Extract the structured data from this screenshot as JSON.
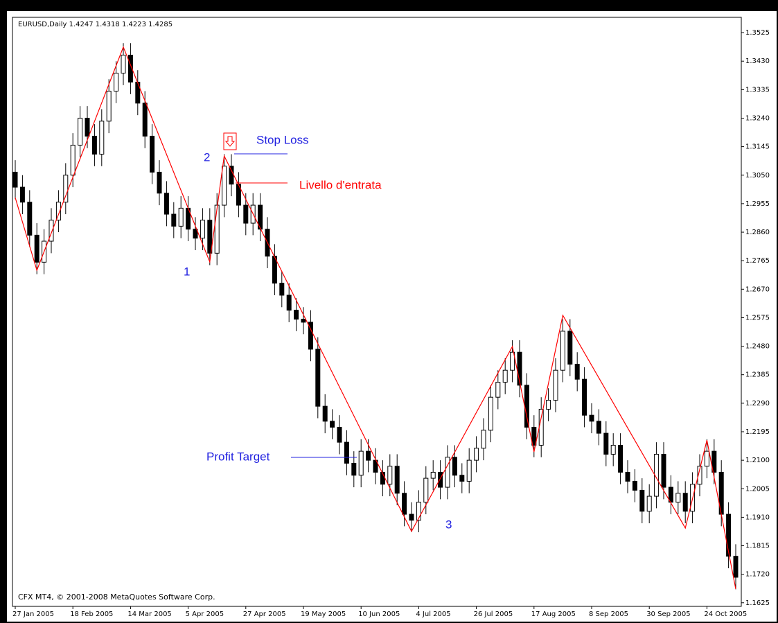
{
  "chart_data": {
    "type": "candlestick",
    "title": "EURUSD,Daily  1.4247 1.4318 1.4223 1.4285",
    "footer": "CFX MT4, © 2001-2008 MetaQuotes Software Corp.",
    "annotations": {
      "stop_loss": "Stop Loss",
      "entry": "Livello d'entrata",
      "profit_target": "Profit Target",
      "point1": "1",
      "point2": "2",
      "point3": "3"
    },
    "colors": {
      "up": "#ffffff",
      "down": "#000000",
      "outline": "#000000",
      "zigzag": "#ff0000",
      "blue_text": "#2020e0",
      "red_text": "#ff0000"
    },
    "categories": [
      "27 Jan 2005",
      null,
      null,
      null,
      null,
      null,
      null,
      null,
      "18 Feb 2005",
      null,
      null,
      null,
      null,
      null,
      null,
      null,
      "14 Mar 2005",
      null,
      null,
      null,
      null,
      null,
      null,
      null,
      "5 Apr 2005",
      null,
      null,
      null,
      null,
      null,
      null,
      null,
      "27 Apr 2005",
      null,
      null,
      null,
      null,
      null,
      null,
      null,
      "19 May 2005",
      null,
      null,
      null,
      null,
      null,
      null,
      null,
      "10 Jun 2005",
      null,
      null,
      null,
      null,
      null,
      null,
      null,
      "4 Jul 2005",
      null,
      null,
      null,
      null,
      null,
      null,
      null,
      "26 Jul 2005",
      null,
      null,
      null,
      null,
      null,
      null,
      null,
      "17 Aug 2005",
      null,
      null,
      null,
      null,
      null,
      null,
      null,
      "8 Sep 2005",
      null,
      null,
      null,
      null,
      null,
      null,
      null,
      "30 Sep 2005",
      null,
      null,
      null,
      null,
      null,
      null,
      null,
      "24 Oct 2005",
      null,
      null,
      null,
      null
    ],
    "open": [
      1.306,
      1.301,
      1.296,
      1.285,
      1.276,
      1.283,
      1.29,
      1.296,
      1.305,
      1.315,
      1.324,
      1.318,
      1.312,
      1.323,
      1.333,
      1.339,
      1.345,
      1.336,
      1.329,
      1.318,
      1.306,
      1.299,
      1.292,
      1.288,
      1.294,
      1.287,
      1.284,
      1.29,
      1.279,
      1.295,
      1.308,
      1.302,
      1.295,
      1.289,
      1.295,
      1.287,
      1.278,
      1.269,
      1.265,
      1.26,
      1.257,
      1.256,
      1.247,
      1.228,
      1.223,
      1.221,
      1.216,
      1.209,
      1.205,
      1.213,
      1.21,
      1.206,
      1.202,
      1.208,
      1.199,
      1.192,
      1.19,
      1.196,
      1.204,
      1.206,
      1.201,
      1.211,
      1.205,
      1.203,
      1.21,
      1.214,
      1.22,
      1.231,
      1.236,
      1.24,
      1.246,
      1.235,
      1.221,
      1.215,
      1.227,
      1.23,
      1.24,
      1.253,
      1.242,
      1.237,
      1.225,
      1.223,
      1.219,
      1.212,
      1.215,
      1.206,
      1.203,
      1.2,
      1.193,
      1.198,
      1.212,
      1.201,
      1.196,
      1.199,
      1.193,
      1.202,
      1.208,
      1.213,
      1.206,
      1.192,
      1.178
    ],
    "high": [
      1.31,
      1.305,
      1.3,
      1.289,
      1.287,
      1.294,
      1.3,
      1.309,
      1.319,
      1.328,
      1.328,
      1.322,
      1.327,
      1.337,
      1.343,
      1.349,
      1.349,
      1.34,
      1.333,
      1.322,
      1.31,
      1.303,
      1.296,
      1.298,
      1.298,
      1.291,
      1.294,
      1.294,
      1.299,
      1.312,
      1.312,
      1.306,
      1.299,
      1.299,
      1.299,
      1.291,
      1.282,
      1.273,
      1.269,
      1.264,
      1.261,
      1.26,
      1.251,
      1.232,
      1.227,
      1.225,
      1.22,
      1.213,
      1.217,
      1.217,
      1.214,
      1.21,
      1.212,
      1.212,
      1.203,
      1.196,
      1.2,
      1.208,
      1.21,
      1.21,
      1.215,
      1.215,
      1.209,
      1.214,
      1.218,
      1.224,
      1.235,
      1.24,
      1.244,
      1.25,
      1.25,
      1.239,
      1.225,
      1.231,
      1.234,
      1.244,
      1.257,
      1.257,
      1.246,
      1.241,
      1.229,
      1.227,
      1.223,
      1.219,
      1.219,
      1.21,
      1.207,
      1.204,
      1.202,
      1.216,
      1.216,
      1.205,
      1.203,
      1.203,
      1.206,
      1.212,
      1.217,
      1.217,
      1.21,
      1.196,
      1.182
    ],
    "low": [
      1.297,
      1.292,
      1.281,
      1.272,
      1.272,
      1.279,
      1.286,
      1.292,
      1.301,
      1.311,
      1.314,
      1.308,
      1.308,
      1.319,
      1.329,
      1.335,
      1.332,
      1.325,
      1.314,
      1.302,
      1.295,
      1.288,
      1.284,
      1.284,
      1.283,
      1.28,
      1.28,
      1.275,
      1.275,
      1.291,
      1.298,
      1.291,
      1.285,
      1.285,
      1.283,
      1.274,
      1.265,
      1.261,
      1.256,
      1.253,
      1.252,
      1.243,
      1.224,
      1.219,
      1.217,
      1.212,
      1.205,
      1.201,
      1.201,
      1.206,
      1.202,
      1.198,
      1.198,
      1.195,
      1.188,
      1.186,
      1.186,
      1.192,
      1.2,
      1.197,
      1.197,
      1.201,
      1.199,
      1.199,
      1.206,
      1.21,
      1.216,
      1.227,
      1.232,
      1.236,
      1.231,
      1.217,
      1.211,
      1.211,
      1.223,
      1.226,
      1.236,
      1.238,
      1.233,
      1.221,
      1.219,
      1.215,
      1.208,
      1.208,
      1.202,
      1.199,
      1.196,
      1.189,
      1.189,
      1.194,
      1.197,
      1.192,
      1.192,
      1.189,
      1.189,
      1.198,
      1.204,
      1.202,
      1.188,
      1.174,
      1.167
    ],
    "close": [
      1.301,
      1.296,
      1.285,
      1.276,
      1.283,
      1.29,
      1.296,
      1.305,
      1.315,
      1.324,
      1.318,
      1.312,
      1.323,
      1.333,
      1.339,
      1.345,
      1.336,
      1.329,
      1.318,
      1.306,
      1.299,
      1.292,
      1.288,
      1.294,
      1.287,
      1.284,
      1.29,
      1.279,
      1.295,
      1.308,
      1.302,
      1.295,
      1.289,
      1.295,
      1.287,
      1.278,
      1.269,
      1.265,
      1.26,
      1.257,
      1.256,
      1.247,
      1.228,
      1.223,
      1.221,
      1.216,
      1.209,
      1.205,
      1.213,
      1.21,
      1.206,
      1.202,
      1.208,
      1.199,
      1.192,
      1.19,
      1.196,
      1.204,
      1.206,
      1.201,
      1.211,
      1.205,
      1.203,
      1.21,
      1.214,
      1.22,
      1.231,
      1.236,
      1.24,
      1.246,
      1.235,
      1.221,
      1.215,
      1.227,
      1.23,
      1.24,
      1.253,
      1.242,
      1.237,
      1.225,
      1.223,
      1.219,
      1.212,
      1.215,
      1.206,
      1.203,
      1.2,
      1.193,
      1.198,
      1.212,
      1.201,
      1.196,
      1.199,
      1.193,
      1.202,
      1.208,
      1.213,
      1.206,
      1.192,
      1.178,
      1.171
    ],
    "zigzag": {
      "x": [
        0,
        3,
        15,
        27,
        29,
        55,
        69,
        72,
        76,
        93,
        96,
        100
      ],
      "values": [
        1.2975,
        1.2733,
        1.3477,
        1.2761,
        1.3114,
        1.1863,
        1.2479,
        1.2128,
        1.2583,
        1.1874,
        1.2167,
        1.1671
      ]
    },
    "ylim": [
      1.1613,
      1.3576
    ],
    "yticks": [
      1.3525,
      {
        "value": 1.343,
        "label": "1.3430"
      },
      1.3335,
      {
        "value": 1.324,
        "label": "1.3240"
      },
      1.3145,
      {
        "value": 1.305,
        "label": "1.3050"
      },
      1.2955,
      {
        "value": 1.286,
        "label": "1.2860"
      },
      1.2765,
      {
        "value": 1.267,
        "label": "1.2670"
      },
      1.2575,
      {
        "value": 1.248,
        "label": "1.2480"
      },
      1.2385,
      {
        "value": 1.229,
        "label": "1.2290"
      },
      1.2195,
      {
        "value": 1.21,
        "label": "1.2100"
      },
      1.2005,
      {
        "value": 1.191,
        "label": "1.1910"
      },
      1.1815,
      {
        "value": 1.172,
        "label": "1.1720"
      },
      1.1625
    ]
  }
}
